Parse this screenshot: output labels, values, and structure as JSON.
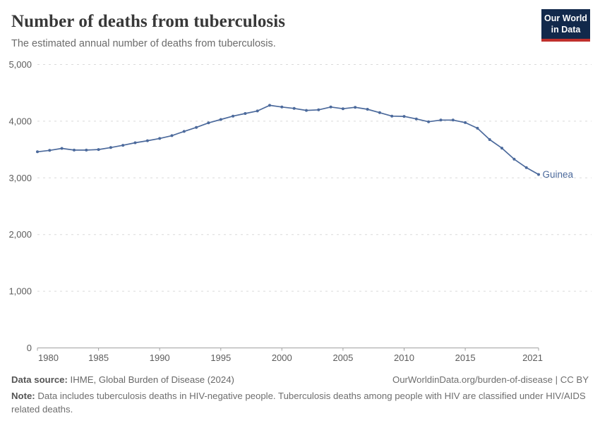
{
  "header": {
    "title": "Number of deaths from tuberculosis",
    "subtitle": "The estimated annual number of deaths from tuberculosis.",
    "logo": {
      "line1": "Our World",
      "line2": "in Data"
    }
  },
  "chart_data": {
    "type": "line",
    "title": "Number of deaths from tuberculosis",
    "xlabel": "",
    "ylabel": "",
    "ylim": [
      0,
      5000
    ],
    "yticks": [
      0,
      1000,
      2000,
      3000,
      4000,
      5000
    ],
    "ytick_labels": [
      "0",
      "1,000",
      "2,000",
      "3,000",
      "4,000",
      "5,000"
    ],
    "xticks": [
      1980,
      1985,
      1990,
      1995,
      2000,
      2005,
      2010,
      2015,
      2021
    ],
    "grid": "horizontal dashed gridlines, legend as end-of-line label",
    "end_label": "Guinea",
    "series": [
      {
        "name": "Guinea",
        "color": "#4c6a9c",
        "x": [
          1980,
          1981,
          1982,
          1983,
          1984,
          1985,
          1986,
          1987,
          1988,
          1989,
          1990,
          1991,
          1992,
          1993,
          1994,
          1995,
          1996,
          1997,
          1998,
          1999,
          2000,
          2001,
          2002,
          2003,
          2004,
          2005,
          2006,
          2007,
          2008,
          2009,
          2010,
          2011,
          2012,
          2013,
          2014,
          2015,
          2016,
          2017,
          2018,
          2019,
          2020,
          2021
        ],
        "values": [
          3460,
          3485,
          3520,
          3490,
          3490,
          3500,
          3535,
          3575,
          3620,
          3655,
          3695,
          3745,
          3820,
          3890,
          3970,
          4030,
          4090,
          4135,
          4180,
          4280,
          4250,
          4225,
          4190,
          4200,
          4250,
          4220,
          4245,
          4210,
          4150,
          4090,
          4085,
          4040,
          3990,
          4020,
          4020,
          3975,
          3875,
          3675,
          3525,
          3330,
          3180,
          3060
        ]
      }
    ]
  },
  "footer": {
    "datasource_label": "Data source:",
    "datasource_text": " IHME, Global Burden of Disease (2024)",
    "attribution": "OurWorldinData.org/burden-of-disease | CC BY",
    "note_label": "Note:",
    "note_text": " Data includes tuberculosis deaths in HIV-negative people. Tuberculosis deaths among people with HIV are classified under HIV/AIDS related deaths."
  },
  "colors": {
    "line": "#4c6a9c",
    "logo_background": "#12294b",
    "logo_accent": "#c0302c"
  }
}
